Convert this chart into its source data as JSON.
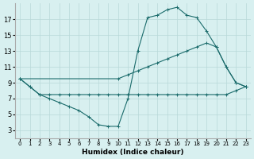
{
  "xlabel": "Humidex (Indice chaleur)",
  "bg_color": "#d8f0f0",
  "line_color": "#1a6b6b",
  "grid_color": "#b8d8d8",
  "xlim": [
    -0.5,
    23.5
  ],
  "ylim": [
    2,
    19
  ],
  "xticks": [
    0,
    1,
    2,
    3,
    4,
    5,
    6,
    7,
    8,
    9,
    10,
    11,
    12,
    13,
    14,
    15,
    16,
    17,
    18,
    19,
    20,
    21,
    22,
    23
  ],
  "yticks": [
    3,
    5,
    7,
    9,
    11,
    13,
    15,
    17
  ],
  "line1_x": [
    0,
    1,
    2,
    3,
    4,
    5,
    6,
    7,
    8,
    9,
    10,
    11,
    12,
    13,
    14,
    15,
    16,
    17,
    18,
    19,
    20,
    21,
    22,
    23
  ],
  "line1_y": [
    9.5,
    8.5,
    7.5,
    7.5,
    7.5,
    7.5,
    7.5,
    7.5,
    7.5,
    7.5,
    7.5,
    7.5,
    7.5,
    7.5,
    7.5,
    7.5,
    7.5,
    7.5,
    7.5,
    7.5,
    7.5,
    7.5,
    8.0,
    8.5
  ],
  "line2_x": [
    0,
    1,
    2,
    3,
    4,
    5,
    6,
    7,
    8,
    9,
    10,
    11,
    12,
    13,
    14,
    15,
    16,
    17,
    18,
    19,
    20,
    21,
    22,
    23
  ],
  "line2_y": [
    9.5,
    8.5,
    7.5,
    7.0,
    6.5,
    6.0,
    5.5,
    4.7,
    3.7,
    3.5,
    3.5,
    7.0,
    13.0,
    17.2,
    17.5,
    18.2,
    18.5,
    17.5,
    17.2,
    15.5,
    13.5,
    11.0,
    9.0,
    8.5
  ],
  "line3_x": [
    0,
    10,
    11,
    12,
    13,
    14,
    15,
    16,
    17,
    18,
    19,
    20,
    21,
    22,
    23
  ],
  "line3_y": [
    9.5,
    9.5,
    10.0,
    10.5,
    11.0,
    11.5,
    12.0,
    12.5,
    13.0,
    13.5,
    14.0,
    13.5,
    11.0,
    9.0,
    8.5
  ]
}
